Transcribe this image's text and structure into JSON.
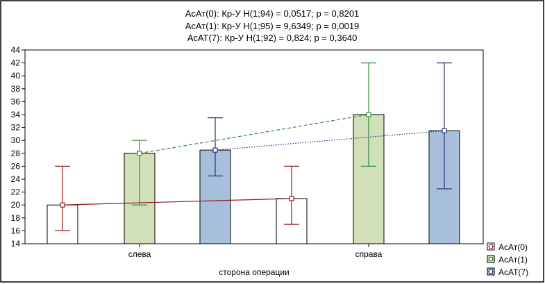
{
  "chart_data": {
    "type": "bar",
    "title_lines": [
      "АсАт(0):  Кр-У H(1;94) = 0,0517; p = 0,8201",
      "АсАт(1):  Кр-У H(1;95) = 9,6349; p = 0,0019",
      "АсАТ(7):  Кр-У H(1;92) = 0,824; p = 0,3640"
    ],
    "xlabel": "сторона операции",
    "ylabel": "",
    "categories": [
      "слева",
      "справа"
    ],
    "ylim": [
      14,
      44
    ],
    "yticks": [
      14,
      16,
      18,
      20,
      22,
      24,
      26,
      28,
      30,
      32,
      34,
      36,
      38,
      40,
      42,
      44
    ],
    "grid": false,
    "legend_position": "bottom-right",
    "series": [
      {
        "name": "АсАт(0)",
        "values": [
          20,
          21
        ],
        "err_low": [
          16,
          17
        ],
        "err_high": [
          26,
          26
        ],
        "fill": "#ffffff",
        "stroke": "#8b1a1a",
        "line_style": "solid"
      },
      {
        "name": "АсАт(1)",
        "values": [
          28,
          34
        ],
        "err_low": [
          20,
          26
        ],
        "err_high": [
          30,
          42
        ],
        "fill": "#d1e0b8",
        "stroke": "#2e8b3a",
        "line_style": "dashed"
      },
      {
        "name": "АсАТ(7)",
        "values": [
          28.5,
          31.5
        ],
        "err_low": [
          24.5,
          22.5
        ],
        "err_high": [
          33.5,
          42
        ],
        "fill": "#a7bfdb",
        "stroke": "#2a2f7a",
        "line_style": "dotted"
      }
    ]
  }
}
